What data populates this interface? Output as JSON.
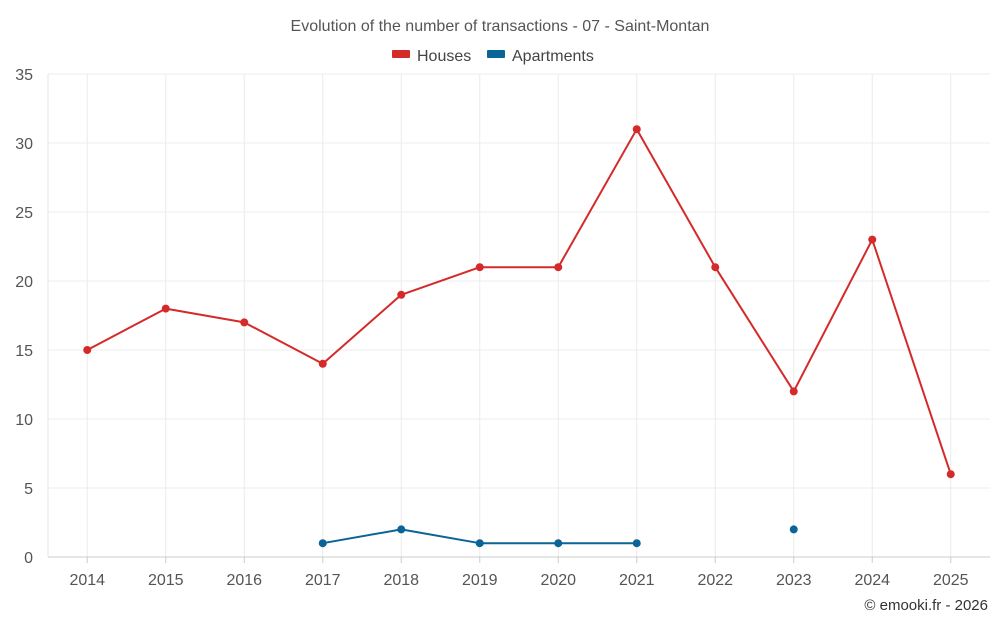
{
  "chart_data": {
    "type": "line",
    "title": "Evolution of the number of transactions - 07 - Saint-Montan",
    "categories": [
      "2014",
      "2015",
      "2016",
      "2017",
      "2018",
      "2019",
      "2020",
      "2021",
      "2022",
      "2023",
      "2024",
      "2025"
    ],
    "series": [
      {
        "name": "Houses",
        "color": "#d42a2a",
        "values": [
          15,
          18,
          17,
          14,
          19,
          21,
          21,
          31,
          21,
          12,
          23,
          6
        ]
      },
      {
        "name": "Apartments",
        "color": "#0a6496",
        "values": [
          null,
          null,
          null,
          1,
          2,
          1,
          1,
          1,
          null,
          2,
          null,
          null
        ]
      }
    ],
    "yticks": [
      "0",
      "5",
      "10",
      "15",
      "20",
      "25",
      "30",
      "35"
    ],
    "ylim": [
      0,
      35
    ],
    "grid": true,
    "legend_position": "top-center"
  },
  "credit": "© emooki.fr - 2026"
}
